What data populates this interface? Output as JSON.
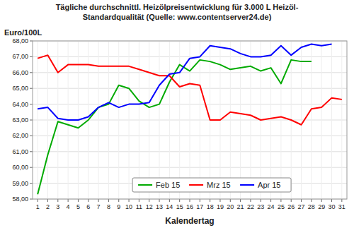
{
  "chart_data": {
    "type": "line",
    "title": "Tägliche durchschnittl. Heizölpreisentwicklung für 3.000 L Heizöl-\nStandardqualität (Quelle: www.contentserver24.de)",
    "x_label": "Kalendertag",
    "y_label": "Euro/100L",
    "x": [
      1,
      2,
      3,
      4,
      5,
      6,
      7,
      8,
      9,
      10,
      11,
      12,
      13,
      14,
      15,
      16,
      17,
      18,
      19,
      20,
      21,
      22,
      23,
      24,
      25,
      26,
      27,
      28,
      29,
      30,
      31
    ],
    "series": [
      {
        "name": "Feb 15",
        "color": "#00AA00",
        "values": [
          58.3,
          60.8,
          62.9,
          62.7,
          62.5,
          63.0,
          63.8,
          64.0,
          65.2,
          65.0,
          64.2,
          63.8,
          64.0,
          65.4,
          66.5,
          66.1,
          66.8,
          66.7,
          66.5,
          66.2,
          66.3,
          66.4,
          66.1,
          66.3,
          65.3,
          66.8,
          66.7,
          66.7,
          null,
          null,
          null
        ]
      },
      {
        "name": "Mrz 15",
        "color": "#FF0000",
        "values": [
          66.9,
          67.1,
          66.0,
          66.5,
          66.5,
          66.5,
          66.4,
          66.4,
          66.4,
          66.4,
          66.2,
          66.0,
          65.8,
          65.8,
          65.1,
          65.3,
          65.2,
          63.0,
          63.0,
          63.5,
          63.4,
          63.3,
          63.0,
          63.1,
          63.2,
          63.0,
          62.7,
          63.7,
          63.8,
          64.4,
          64.3
        ]
      },
      {
        "name": "Apr 15",
        "color": "#0000FF",
        "values": [
          63.7,
          63.8,
          63.1,
          63.0,
          63.0,
          63.2,
          63.8,
          64.1,
          63.8,
          64.0,
          64.0,
          64.1,
          65.2,
          65.9,
          66.0,
          66.9,
          67.0,
          67.7,
          67.6,
          67.5,
          67.2,
          67.0,
          67.0,
          67.1,
          67.7,
          67.1,
          67.6,
          67.8,
          67.7,
          67.8,
          null
        ]
      }
    ],
    "xlim": [
      0.5,
      31.5
    ],
    "xticks": [
      1,
      2,
      3,
      4,
      5,
      6,
      7,
      8,
      9,
      10,
      11,
      12,
      13,
      14,
      15,
      16,
      17,
      18,
      19,
      20,
      21,
      22,
      23,
      24,
      25,
      26,
      27,
      28,
      29,
      30,
      31
    ],
    "ylim": [
      58.0,
      68.0
    ],
    "yticks": [
      {
        "value": 58.0,
        "label": "58,00"
      },
      {
        "value": 59.0,
        "label": "59,00"
      },
      {
        "value": 60.0,
        "label": "60,00"
      },
      {
        "value": 61.0,
        "label": "61,00"
      },
      {
        "value": 62.0,
        "label": "62,00"
      },
      {
        "value": 63.0,
        "label": "63,00"
      },
      {
        "value": 64.0,
        "label": "64,00"
      },
      {
        "value": 65.0,
        "label": "65,00"
      },
      {
        "value": 66.0,
        "label": "66,00"
      },
      {
        "value": 67.0,
        "label": "67,00"
      },
      {
        "value": 68.0,
        "label": "68,00"
      }
    ],
    "grid": true,
    "legend": "bottom"
  }
}
